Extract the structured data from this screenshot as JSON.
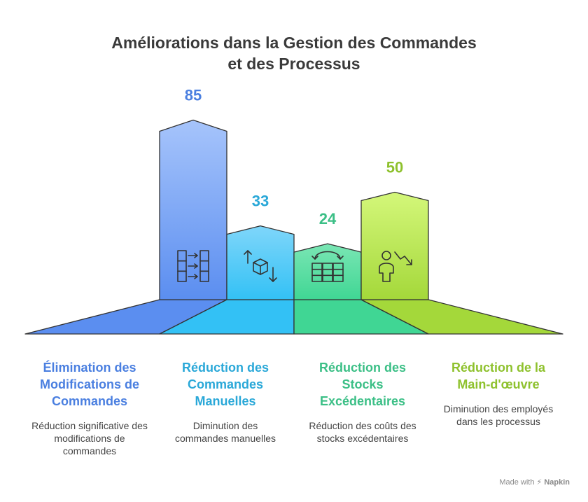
{
  "title_line1": "Améliorations dans la Gestion des Commandes",
  "title_line2": "et des Processus",
  "chart_data": {
    "type": "bar",
    "title": "Améliorations dans la Gestion des Commandes et des Processus",
    "categories": [
      "Élimination des Modifications de Commandes",
      "Réduction des Commandes Manuelles",
      "Réduction des Stocks Excédentaires",
      "Réduction de la Main-d'œuvre"
    ],
    "values": [
      85,
      33,
      24,
      50
    ],
    "value_labels": [
      "85",
      "33",
      "24",
      "50"
    ],
    "ylim": [
      0,
      100
    ],
    "xlabel": "",
    "ylabel": ""
  },
  "items": [
    {
      "title": "Élimination des Modifications de Commandes",
      "desc": "Réduction significative des modifications de commandes",
      "icon": "transfer-grid-icon",
      "color": "#4a7fe0",
      "top": "#a6c4fb",
      "bottom": "#5b8ef0"
    },
    {
      "title": "Réduction des Commandes Manuelles",
      "desc": "Diminution des commandes manuelles",
      "icon": "box-arrows-icon",
      "color": "#2aa8d8",
      "top": "#7fd6fa",
      "bottom": "#33c1f5"
    },
    {
      "title": "Réduction des Stocks Excédentaires",
      "desc": "Réduction des coûts des stocks excédentaires",
      "icon": "stock-shelves-icon",
      "color": "#3bbf86",
      "top": "#7ae6b4",
      "bottom": "#40d694"
    },
    {
      "title": "Réduction de la Main-d'œuvre",
      "desc": "Diminution des employés dans les processus",
      "icon": "person-decrease-icon",
      "color": "#8ec12d",
      "top": "#d4f77a",
      "bottom": "#a4d83a"
    }
  ],
  "footer": {
    "made_with": "Made with",
    "brand": "Napkin"
  }
}
